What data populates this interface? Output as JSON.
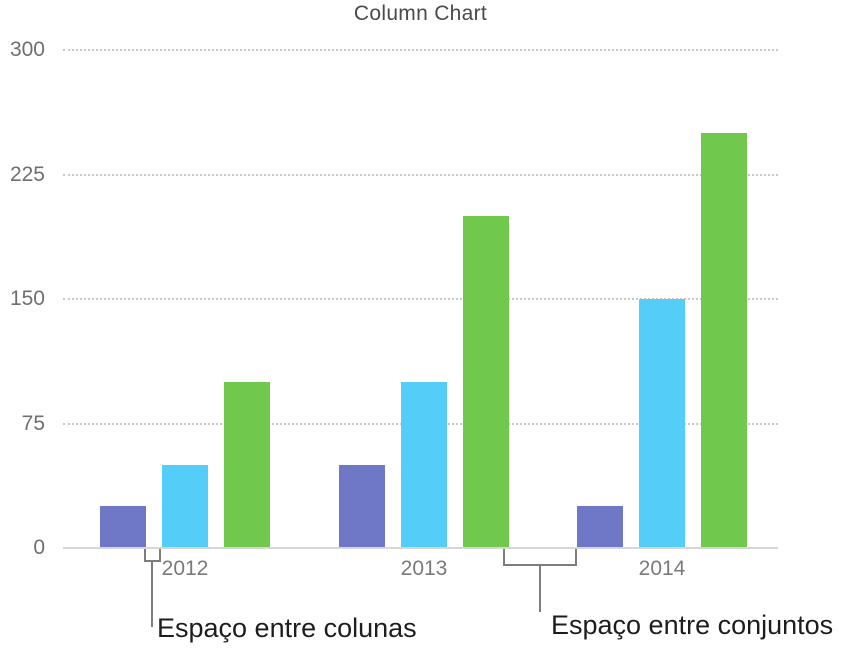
{
  "figure": {
    "title": "Column Chart"
  },
  "chart_data": {
    "type": "bar",
    "title": "Column Chart",
    "categories": [
      "2012",
      "2013",
      "2014"
    ],
    "series": [
      {
        "name": "purple-series",
        "color": "#6E78C6",
        "values": [
          25,
          50,
          25
        ]
      },
      {
        "name": "blue-series",
        "color": "#54CEF9",
        "values": [
          50,
          100,
          150
        ]
      },
      {
        "name": "green-series",
        "color": "#70C84C",
        "values": [
          100,
          200,
          250
        ]
      }
    ],
    "xlabel": "",
    "ylabel": "",
    "ylim": [
      0,
      300
    ],
    "yticks": [
      0,
      75,
      150,
      225,
      300
    ],
    "grid": "horizontal-dotted",
    "legend_position": "none"
  },
  "annotations": {
    "column_gap": "Espaço entre colunas",
    "group_gap": "Espaço entre conjuntos"
  },
  "colors": {
    "bar_purple": "#6E78C6",
    "bar_blue": "#54CEF9",
    "bar_green": "#70C84C",
    "axis_line": "#D6D6D6",
    "gridline": "#C9C9C9",
    "tick_label": "#6F6F6F",
    "category_label": "#7A7A7A",
    "chart_title": "#4A4A4A",
    "callout_line": "#7D7D7D",
    "callout_text": "#1D1D1F"
  }
}
